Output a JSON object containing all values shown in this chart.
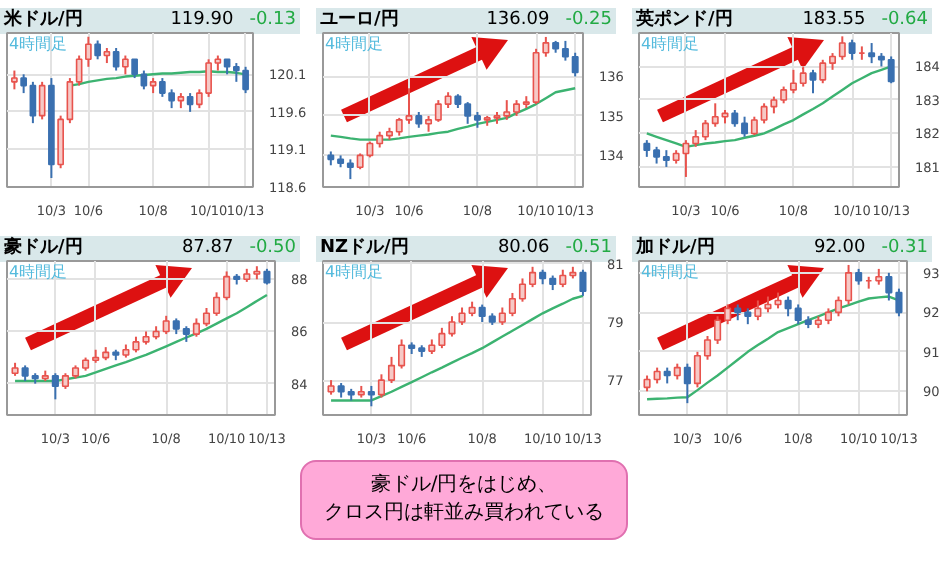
{
  "chart_data": [
    {
      "type": "candlestick",
      "title": "米ドル/円",
      "subtitle": "119.90",
      "annotations": [
        "-0.13",
        "4時間足"
      ],
      "categories": [
        null,
        null,
        null,
        null,
        "10/3",
        null,
        null,
        null,
        "10/6",
        null,
        null,
        null,
        null,
        null,
        null,
        "10/8",
        null,
        null,
        null,
        null,
        null,
        "10/10",
        null,
        null,
        null,
        "10/13"
      ],
      "ohlc": [
        [
          120.0,
          120.15,
          119.9,
          120.05
        ],
        [
          120.05,
          120.1,
          119.85,
          119.95
        ],
        [
          119.95,
          120.0,
          119.45,
          119.55
        ],
        [
          119.55,
          120.0,
          119.5,
          119.95
        ],
        [
          119.95,
          120.05,
          118.72,
          118.9
        ],
        [
          118.9,
          119.55,
          118.85,
          119.5
        ],
        [
          119.5,
          120.05,
          119.45,
          120.0
        ],
        [
          120.0,
          120.35,
          119.95,
          120.3
        ],
        [
          120.3,
          120.6,
          120.2,
          120.5
        ],
        [
          120.5,
          120.55,
          120.3,
          120.35
        ],
        [
          120.35,
          120.45,
          120.25,
          120.4
        ],
        [
          120.4,
          120.45,
          120.15,
          120.2
        ],
        [
          120.2,
          120.35,
          120.1,
          120.3
        ],
        [
          120.3,
          120.3,
          120.05,
          120.1
        ],
        [
          120.1,
          120.15,
          119.9,
          119.95
        ],
        [
          119.95,
          120.05,
          119.85,
          120.0
        ],
        [
          120.0,
          120.05,
          119.8,
          119.85
        ],
        [
          119.85,
          119.9,
          119.65,
          119.75
        ],
        [
          119.75,
          119.85,
          119.65,
          119.8
        ],
        [
          119.8,
          119.85,
          119.6,
          119.7
        ],
        [
          119.7,
          119.9,
          119.65,
          119.85
        ],
        [
          119.85,
          120.3,
          119.8,
          120.25
        ],
        [
          120.25,
          120.35,
          120.15,
          120.3
        ],
        [
          120.3,
          120.3,
          120.1,
          120.2
        ],
        [
          120.2,
          120.25,
          120.0,
          120.15
        ],
        [
          120.15,
          120.2,
          119.85,
          119.9
        ]
      ],
      "colors": [
        "#e8534d",
        "#3a70b0",
        "#3a70b0",
        "#e8534d",
        "#3a70b0",
        "#e8534d",
        "#e8534d",
        "#e8534d",
        "#e8534d",
        "#3a70b0",
        "#e8534d",
        "#3a70b0",
        "#e8534d",
        "#3a70b0",
        "#3a70b0",
        "#e8534d",
        "#3a70b0",
        "#3a70b0",
        "#e8534d",
        "#3a70b0",
        "#e8534d",
        "#e8534d",
        "#e8534d",
        "#3a70b0",
        "#3a70b0",
        "#3a70b0"
      ],
      "series": [
        {
          "type": "line",
          "color": "#3cb371",
          "values": [
            null,
            null,
            null,
            null,
            null,
            null,
            119.95,
            119.97,
            120.0,
            120.02,
            120.04,
            120.05,
            120.07,
            120.08,
            120.09,
            120.1,
            120.11,
            120.11,
            120.12,
            120.13,
            120.13,
            120.14,
            120.13,
            120.13,
            120.12,
            120.1
          ]
        }
      ],
      "ylim": [
        118.6,
        120.65
      ],
      "yticks": [
        {
          "value": 118.6,
          "label": "118.6"
        },
        {
          "value": 119.1,
          "label": "119.1"
        },
        {
          "value": 119.6,
          "label": "119.6"
        },
        {
          "value": 120.1,
          "label": "120.1"
        }
      ],
      "grid": true
    },
    {
      "type": "candlestick",
      "title": "ユーロ/円",
      "subtitle": "136.09",
      "annotations": [
        "-0.25",
        "4時間足"
      ],
      "categories": [
        null,
        null,
        null,
        null,
        "10/3",
        null,
        null,
        null,
        "10/6",
        null,
        null,
        null,
        null,
        null,
        null,
        "10/8",
        null,
        null,
        null,
        null,
        null,
        "10/10",
        null,
        null,
        null,
        "10/13"
      ],
      "ohlc": [
        [
          134.0,
          134.1,
          133.75,
          133.9
        ],
        [
          133.9,
          134.0,
          133.7,
          133.8
        ],
        [
          133.8,
          133.9,
          133.4,
          133.7
        ],
        [
          133.7,
          134.05,
          133.65,
          134.0
        ],
        [
          134.0,
          134.35,
          133.95,
          134.3
        ],
        [
          134.3,
          134.6,
          134.2,
          134.5
        ],
        [
          134.5,
          134.7,
          134.4,
          134.6
        ],
        [
          134.6,
          134.95,
          134.5,
          134.9
        ],
        [
          134.9,
          135.7,
          134.8,
          135.0
        ],
        [
          135.0,
          135.1,
          134.7,
          134.8
        ],
        [
          134.8,
          135.0,
          134.6,
          134.9
        ],
        [
          134.9,
          135.4,
          134.85,
          135.3
        ],
        [
          135.3,
          135.6,
          135.2,
          135.5
        ],
        [
          135.5,
          135.55,
          135.2,
          135.3
        ],
        [
          135.3,
          135.35,
          134.8,
          135.0
        ],
        [
          135.0,
          135.1,
          134.7,
          134.9
        ],
        [
          134.9,
          135.0,
          134.75,
          134.95
        ],
        [
          134.95,
          135.1,
          134.8,
          135.0
        ],
        [
          135.0,
          135.4,
          134.9,
          135.1
        ],
        [
          135.1,
          135.4,
          135.0,
          135.3
        ],
        [
          135.3,
          135.5,
          135.2,
          135.35
        ],
        [
          135.35,
          136.7,
          135.3,
          136.6
        ],
        [
          136.6,
          137.0,
          136.5,
          136.85
        ],
        [
          136.85,
          136.9,
          136.6,
          136.7
        ],
        [
          136.7,
          136.9,
          136.4,
          136.5
        ],
        [
          136.5,
          136.6,
          136.0,
          136.1
        ]
      ],
      "colors": [
        "#3a70b0",
        "#3a70b0",
        "#3a70b0",
        "#e8534d",
        "#e8534d",
        "#e8534d",
        "#e8534d",
        "#e8534d",
        "#e8534d",
        "#3a70b0",
        "#e8534d",
        "#e8534d",
        "#e8534d",
        "#3a70b0",
        "#3a70b0",
        "#3a70b0",
        "#e8534d",
        "#e8534d",
        "#e8534d",
        "#e8534d",
        "#e8534d",
        "#e8534d",
        "#e8534d",
        "#3a70b0",
        "#3a70b0",
        "#3a70b0"
      ],
      "series": [
        {
          "type": "line",
          "color": "#3cb371",
          "values": [
            134.5,
            134.47,
            134.43,
            134.4,
            134.4,
            134.4,
            134.4,
            134.43,
            134.47,
            134.5,
            134.53,
            134.57,
            134.6,
            134.67,
            134.73,
            134.8,
            134.85,
            134.9,
            134.95,
            135.07,
            135.18,
            135.3,
            135.45,
            135.6,
            135.65,
            135.7
          ]
        }
      ],
      "ylim": [
        133.2,
        137.1
      ],
      "yticks": [
        134,
        135,
        136
      ],
      "grid": true
    },
    {
      "type": "candlestick",
      "title": "英ポンド/円",
      "subtitle": "183.55",
      "annotations": [
        "-0.64",
        "4時間足"
      ],
      "categories": [
        null,
        null,
        null,
        null,
        "10/3",
        null,
        null,
        null,
        "10/6",
        null,
        null,
        null,
        null,
        null,
        null,
        "10/8",
        null,
        null,
        null,
        null,
        null,
        "10/10",
        null,
        null,
        null,
        "10/13"
      ],
      "ohlc": [
        [
          181.7,
          181.8,
          181.3,
          181.5
        ],
        [
          181.5,
          181.6,
          181.1,
          181.3
        ],
        [
          181.3,
          181.5,
          181.0,
          181.2
        ],
        [
          181.2,
          181.5,
          181.1,
          181.4
        ],
        [
          181.4,
          181.8,
          180.7,
          181.7
        ],
        [
          181.7,
          182.1,
          181.6,
          181.9
        ],
        [
          181.9,
          182.4,
          181.8,
          182.3
        ],
        [
          182.3,
          182.9,
          182.2,
          182.5
        ],
        [
          182.5,
          182.7,
          182.3,
          182.6
        ],
        [
          182.6,
          182.7,
          182.2,
          182.3
        ],
        [
          182.3,
          182.5,
          181.9,
          182.0
        ],
        [
          182.0,
          182.5,
          181.95,
          182.4
        ],
        [
          182.4,
          182.9,
          182.3,
          182.8
        ],
        [
          182.8,
          183.1,
          182.6,
          183.0
        ],
        [
          183.0,
          183.4,
          182.9,
          183.3
        ],
        [
          183.3,
          183.9,
          183.2,
          183.5
        ],
        [
          183.5,
          184.0,
          183.4,
          183.8
        ],
        [
          183.8,
          183.9,
          183.2,
          183.6
        ],
        [
          183.6,
          184.2,
          183.5,
          184.1
        ],
        [
          184.1,
          184.4,
          183.9,
          184.3
        ],
        [
          184.3,
          184.9,
          184.2,
          184.7
        ],
        [
          184.7,
          184.8,
          184.2,
          184.4
        ],
        [
          184.4,
          184.6,
          184.2,
          184.4
        ],
        [
          184.4,
          184.7,
          184.1,
          184.3
        ],
        [
          184.3,
          184.4,
          184.0,
          184.2
        ],
        [
          184.2,
          184.3,
          183.5,
          183.55
        ]
      ],
      "colors": [
        "#3a70b0",
        "#3a70b0",
        "#3a70b0",
        "#e8534d",
        "#e8534d",
        "#e8534d",
        "#e8534d",
        "#e8534d",
        "#e8534d",
        "#3a70b0",
        "#3a70b0",
        "#e8534d",
        "#e8534d",
        "#e8534d",
        "#e8534d",
        "#e8534d",
        "#e8534d",
        "#3a70b0",
        "#e8534d",
        "#e8534d",
        "#e8534d",
        "#3a70b0",
        "#e8534d",
        "#3a70b0",
        "#3a70b0",
        "#3a70b0"
      ],
      "series": [
        {
          "type": "line",
          "color": "#3cb371",
          "values": [
            182.0,
            181.9,
            181.8,
            181.7,
            181.6,
            181.65,
            181.7,
            181.73,
            181.77,
            181.8,
            181.87,
            181.93,
            182.0,
            182.13,
            182.27,
            182.4,
            182.57,
            182.73,
            182.9,
            183.1,
            183.3,
            183.5,
            183.65,
            183.8,
            183.9,
            184.0
          ]
        }
      ],
      "ylim": [
        180.4,
        185.0
      ],
      "yticks": [
        181,
        182,
        183,
        184
      ],
      "grid": true
    },
    {
      "type": "candlestick",
      "title": "豪ドル/円",
      "subtitle": "87.87",
      "annotations": [
        "-0.50",
        "4時間足"
      ],
      "categories": [
        null,
        null,
        null,
        null,
        "10/3",
        null,
        null,
        null,
        "10/6",
        null,
        null,
        null,
        null,
        null,
        null,
        "10/8",
        null,
        null,
        null,
        null,
        null,
        "10/10",
        null,
        null,
        null,
        "10/13"
      ],
      "ohlc": [
        [
          84.4,
          84.8,
          84.3,
          84.6
        ],
        [
          84.6,
          84.7,
          84.1,
          84.3
        ],
        [
          84.3,
          84.4,
          84.0,
          84.2
        ],
        [
          84.2,
          84.5,
          84.1,
          84.3
        ],
        [
          84.3,
          84.4,
          83.4,
          83.9
        ],
        [
          83.9,
          84.4,
          83.8,
          84.3
        ],
        [
          84.3,
          84.7,
          84.2,
          84.6
        ],
        [
          84.6,
          85.0,
          84.5,
          84.9
        ],
        [
          84.9,
          85.3,
          84.8,
          85.0
        ],
        [
          85.0,
          85.4,
          84.9,
          85.2
        ],
        [
          85.2,
          85.3,
          84.9,
          85.1
        ],
        [
          85.1,
          85.5,
          85.0,
          85.3
        ],
        [
          85.3,
          85.8,
          85.2,
          85.6
        ],
        [
          85.6,
          86.0,
          85.5,
          85.8
        ],
        [
          85.8,
          86.2,
          85.7,
          86.0
        ],
        [
          86.0,
          86.6,
          85.9,
          86.4
        ],
        [
          86.4,
          86.5,
          85.9,
          86.1
        ],
        [
          86.1,
          86.2,
          85.6,
          85.9
        ],
        [
          85.9,
          86.5,
          85.8,
          86.3
        ],
        [
          86.3,
          86.9,
          86.2,
          86.7
        ],
        [
          86.7,
          87.5,
          86.6,
          87.3
        ],
        [
          87.3,
          88.3,
          87.2,
          88.1
        ],
        [
          88.1,
          88.2,
          87.8,
          88.0
        ],
        [
          88.0,
          88.4,
          87.9,
          88.2
        ],
        [
          88.2,
          88.5,
          88.0,
          88.3
        ],
        [
          88.3,
          88.4,
          87.8,
          87.87
        ]
      ],
      "colors": [
        "#e8534d",
        "#3a70b0",
        "#3a70b0",
        "#e8534d",
        "#3a70b0",
        "#e8534d",
        "#e8534d",
        "#e8534d",
        "#e8534d",
        "#e8534d",
        "#3a70b0",
        "#e8534d",
        "#e8534d",
        "#e8534d",
        "#e8534d",
        "#e8534d",
        "#3a70b0",
        "#3a70b0",
        "#e8534d",
        "#e8534d",
        "#e8534d",
        "#e8534d",
        "#3a70b0",
        "#e8534d",
        "#e8534d",
        "#3a70b0"
      ],
      "series": [
        {
          "type": "line",
          "color": "#3cb371",
          "values": [
            84.1,
            84.1,
            84.1,
            84.1,
            84.1,
            84.17,
            84.23,
            84.3,
            84.43,
            84.57,
            84.7,
            84.83,
            84.97,
            85.1,
            85.27,
            85.43,
            85.6,
            85.77,
            85.93,
            86.1,
            86.3,
            86.5,
            86.7,
            86.93,
            87.17,
            87.4
          ]
        }
      ],
      "ylim": [
        82.8,
        88.7
      ],
      "yticks": [
        84,
        86,
        88
      ],
      "grid": true
    },
    {
      "type": "candlestick",
      "title": "NZドル/円",
      "subtitle": "80.06",
      "annotations": [
        "-0.51",
        "4時間足"
      ],
      "categories": [
        null,
        null,
        null,
        null,
        "10/3",
        null,
        null,
        null,
        "10/6",
        null,
        null,
        null,
        null,
        null,
        null,
        "10/8",
        null,
        null,
        null,
        null,
        null,
        "10/10",
        null,
        null,
        null,
        "10/13"
      ],
      "ohlc": [
        [
          76.6,
          77.0,
          76.5,
          76.8
        ],
        [
          76.8,
          76.9,
          76.4,
          76.6
        ],
        [
          76.6,
          76.7,
          76.3,
          76.5
        ],
        [
          76.5,
          76.8,
          76.4,
          76.6
        ],
        [
          76.6,
          76.8,
          76.1,
          76.5
        ],
        [
          76.5,
          77.2,
          76.4,
          77.0
        ],
        [
          77.0,
          77.8,
          76.9,
          77.5
        ],
        [
          77.5,
          78.4,
          77.4,
          78.2
        ],
        [
          78.2,
          78.3,
          77.9,
          78.1
        ],
        [
          78.1,
          78.2,
          77.8,
          78.0
        ],
        [
          78.0,
          78.4,
          77.9,
          78.2
        ],
        [
          78.2,
          78.8,
          78.1,
          78.6
        ],
        [
          78.6,
          79.2,
          78.5,
          79.0
        ],
        [
          79.0,
          79.5,
          78.9,
          79.3
        ],
        [
          79.3,
          79.7,
          79.2,
          79.5
        ],
        [
          79.5,
          79.6,
          79.0,
          79.2
        ],
        [
          79.2,
          79.3,
          78.9,
          79.0
        ],
        [
          79.0,
          79.5,
          78.9,
          79.3
        ],
        [
          79.3,
          80.0,
          79.2,
          79.8
        ],
        [
          79.8,
          80.5,
          79.7,
          80.3
        ],
        [
          80.3,
          80.9,
          80.2,
          80.7
        ],
        [
          80.7,
          80.8,
          80.3,
          80.5
        ],
        [
          80.5,
          80.6,
          80.1,
          80.3
        ],
        [
          80.3,
          80.8,
          80.2,
          80.6
        ],
        [
          80.6,
          80.9,
          80.5,
          80.7
        ],
        [
          80.7,
          80.8,
          79.9,
          80.06
        ]
      ],
      "colors": [
        "#e8534d",
        "#3a70b0",
        "#3a70b0",
        "#e8534d",
        "#3a70b0",
        "#e8534d",
        "#e8534d",
        "#e8534d",
        "#3a70b0",
        "#3a70b0",
        "#e8534d",
        "#e8534d",
        "#e8534d",
        "#e8534d",
        "#e8534d",
        "#3a70b0",
        "#3a70b0",
        "#e8534d",
        "#e8534d",
        "#e8534d",
        "#e8534d",
        "#3a70b0",
        "#3a70b0",
        "#e8534d",
        "#e8534d",
        "#3a70b0"
      ],
      "series": [
        {
          "type": "line",
          "color": "#3cb371",
          "values": [
            76.3,
            76.3,
            76.3,
            76.3,
            76.3,
            76.45,
            76.6,
            76.77,
            76.93,
            77.1,
            77.27,
            77.43,
            77.6,
            77.77,
            77.93,
            78.1,
            78.3,
            78.5,
            78.7,
            78.9,
            79.1,
            79.3,
            79.47,
            79.63,
            79.8,
            79.9
          ]
        }
      ],
      "ylim": [
        75.8,
        81.1
      ],
      "yticks": [
        77,
        79,
        81
      ],
      "grid": true
    },
    {
      "type": "candlestick",
      "title": "加ドル/円",
      "subtitle": "92.00",
      "annotations": [
        "-0.31",
        "4時間足"
      ],
      "categories": [
        null,
        null,
        null,
        null,
        "10/3",
        null,
        null,
        null,
        "10/6",
        null,
        null,
        null,
        null,
        null,
        null,
        "10/8",
        null,
        null,
        null,
        null,
        null,
        "10/10",
        null,
        null,
        null,
        "10/13"
      ],
      "ohlc": [
        [
          90.1,
          90.4,
          90.0,
          90.3
        ],
        [
          90.3,
          90.6,
          90.2,
          90.5
        ],
        [
          90.5,
          90.6,
          90.2,
          90.4
        ],
        [
          90.4,
          90.7,
          90.3,
          90.6
        ],
        [
          90.6,
          90.7,
          89.7,
          90.2
        ],
        [
          90.2,
          91.0,
          90.1,
          90.9
        ],
        [
          90.9,
          91.4,
          90.8,
          91.3
        ],
        [
          91.3,
          91.9,
          91.2,
          91.8
        ],
        [
          91.8,
          92.2,
          91.7,
          92.1
        ],
        [
          92.1,
          92.2,
          91.8,
          92.0
        ],
        [
          92.0,
          92.1,
          91.7,
          91.9
        ],
        [
          91.9,
          92.3,
          91.8,
          92.1
        ],
        [
          92.1,
          92.4,
          92.0,
          92.2
        ],
        [
          92.2,
          92.5,
          92.1,
          92.3
        ],
        [
          92.3,
          92.4,
          91.9,
          92.1
        ],
        [
          92.1,
          92.2,
          91.7,
          91.8
        ],
        [
          91.8,
          91.9,
          91.6,
          91.7
        ],
        [
          91.7,
          91.9,
          91.6,
          91.8
        ],
        [
          91.8,
          92.1,
          91.7,
          92.0
        ],
        [
          92.0,
          92.4,
          91.9,
          92.3
        ],
        [
          92.3,
          93.2,
          92.2,
          93.0
        ],
        [
          93.0,
          93.1,
          92.7,
          92.8
        ],
        [
          92.8,
          92.9,
          92.6,
          92.8
        ],
        [
          92.8,
          93.1,
          92.7,
          92.9
        ],
        [
          92.9,
          93.0,
          92.3,
          92.5
        ],
        [
          92.5,
          92.6,
          91.9,
          92.0
        ]
      ],
      "colors": [
        "#e8534d",
        "#e8534d",
        "#3a70b0",
        "#e8534d",
        "#3a70b0",
        "#e8534d",
        "#e8534d",
        "#e8534d",
        "#e8534d",
        "#3a70b0",
        "#3a70b0",
        "#e8534d",
        "#e8534d",
        "#e8534d",
        "#3a70b0",
        "#3a70b0",
        "#3a70b0",
        "#e8534d",
        "#e8534d",
        "#e8534d",
        "#e8534d",
        "#3a70b0",
        "#e8534d",
        "#e8534d",
        "#3a70b0",
        "#3a70b0"
      ],
      "series": [
        {
          "type": "line",
          "color": "#3cb371",
          "values": [
            89.8,
            89.81,
            89.82,
            89.84,
            89.85,
            90.03,
            90.22,
            90.4,
            90.6,
            90.8,
            91.0,
            91.17,
            91.33,
            91.5,
            91.6,
            91.7,
            91.8,
            91.9,
            92.0,
            92.1,
            92.18,
            92.27,
            92.35,
            92.38,
            92.4,
            92.3
          ]
        }
      ],
      "ylim": [
        89.4,
        93.3
      ],
      "yticks": [
        90,
        91,
        92,
        93
      ],
      "grid": true
    },
    {
      "type": "other",
      "annotations": [
        "豪ドル/円をはじめ、",
        "クロス円は軒並み買われている"
      ]
    }
  ]
}
